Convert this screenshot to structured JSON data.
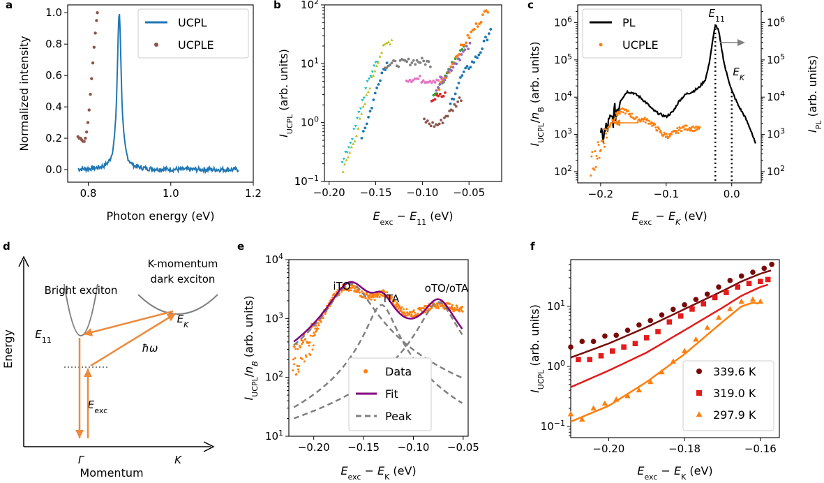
{
  "colors": {
    "ucpl_blue": "#1f77b4",
    "ucple_brown": "#8c564b",
    "orange": "#ff7f0e",
    "purple": "#800080",
    "gray": "#808080",
    "dark_red": "#7a0a0a",
    "red": "#e41a1c"
  },
  "panels": {
    "a": {
      "label": "a",
      "xlabel": "Photon energy (eV)",
      "ylabel": "Normalized intensity",
      "legend": [
        "UCPL",
        "UCPLE"
      ],
      "xticks": [
        "0.8",
        "1.0",
        "1.2"
      ],
      "yticks": [
        "0.0",
        "0.2",
        "0.4",
        "0.6",
        "0.8",
        "1.0"
      ]
    },
    "b": {
      "label": "b",
      "xlabel": "E_exc − E_11 (eV)",
      "ylabel": "I_UCPL (arb. units)",
      "xticks": [
        "−0.20",
        "−0.15",
        "−0.10",
        "−0.05"
      ],
      "yticks": [
        "10^−1",
        "10^0",
        "10^1",
        "10^2"
      ]
    },
    "c": {
      "label": "c",
      "xlabel": "E_exc − E_K (eV)",
      "ylabel": "I_UCPL/n_B (arb. units)",
      "ylabel2": "I_PL (arb. units)",
      "legend": [
        "PL",
        "UCPLE"
      ],
      "ann_e11": "E_11",
      "ann_ek": "E_K",
      "xticks": [
        "−0.2",
        "−0.1",
        "0.0"
      ],
      "yticks": [
        "10^2",
        "10^3",
        "10^4",
        "10^5",
        "10^6"
      ]
    },
    "d": {
      "label": "d",
      "xlabel": "Momentum",
      "ylabel": "Energy",
      "bright": "Bright exciton",
      "dark1": "K-momentum",
      "dark2": "dark exciton",
      "e11": "E_11",
      "ek": "E_K",
      "hw": "ħω",
      "eexc": "E_exc",
      "gamma": "Γ",
      "k": "K"
    },
    "e": {
      "label": "e",
      "xlabel": "E_exc − E_K (eV)",
      "ylabel": "I_UCPL/n_B (arb. units)",
      "legend": [
        "Data",
        "Fit",
        "Peak"
      ],
      "peaks": [
        "iTO",
        "iTA",
        "oTO/oTA"
      ],
      "xticks": [
        "−0.20",
        "−0.15",
        "−0.10",
        "−0.05"
      ],
      "yticks": [
        "10^1",
        "10^2",
        "10^3",
        "10^4"
      ]
    },
    "f": {
      "label": "f",
      "xlabel": "E_exc − E_K (eV)",
      "ylabel": "I_UCPL (arb. units)",
      "legend": [
        "339.6 K",
        "319.0 K",
        "297.9 K"
      ],
      "xticks": [
        "−0.20",
        "−0.18",
        "−0.16"
      ],
      "yticks": [
        "10^−1",
        "10^0",
        "10^1"
      ]
    }
  },
  "chart_data": [
    {
      "panel": "a",
      "type": "line",
      "xlabel": "Photon energy (eV)",
      "ylabel": "Normalized intensity",
      "xlim": [
        0.75,
        1.2
      ],
      "ylim": [
        -0.08,
        1.05
      ],
      "series": [
        {
          "name": "UCPL",
          "kind": "line",
          "center": 0.875,
          "width": 0.006,
          "noise": 0.015,
          "x_range": [
            0.775,
            1.165
          ]
        },
        {
          "name": "UCPLE",
          "kind": "scatter",
          "x": [
            0.775,
            0.778,
            0.781,
            0.784,
            0.787,
            0.79,
            0.793,
            0.796,
            0.799,
            0.802,
            0.805,
            0.808,
            0.811,
            0.814,
            0.817,
            0.82,
            0.822
          ],
          "y": [
            0.21,
            0.2,
            0.2,
            0.19,
            0.18,
            0.18,
            0.2,
            0.24,
            0.3,
            0.38,
            0.48,
            0.58,
            0.68,
            0.78,
            0.87,
            0.95,
            1.0
          ]
        }
      ]
    },
    {
      "panel": "b",
      "type": "scatter",
      "log_y": true,
      "xlabel": "E_exc − E_11 (eV)",
      "ylabel": "I_UCPL (arb. units)",
      "xlim": [
        -0.205,
        -0.015
      ],
      "ylim": [
        0.1,
        100
      ],
      "series": [
        {
          "color": "#17becf",
          "x": [
            -0.186,
            -0.18,
            -0.172,
            -0.165,
            -0.158,
            -0.152,
            -0.147
          ],
          "y": [
            0.2,
            0.35,
            0.8,
            2.2,
            5,
            9,
            13
          ]
        },
        {
          "color": "#bcbd22",
          "x": [
            -0.185,
            -0.178,
            -0.17,
            -0.162,
            -0.155,
            -0.148,
            -0.143,
            -0.138,
            -0.132
          ],
          "y": [
            0.15,
            0.3,
            0.7,
            2,
            5,
            11,
            17,
            22,
            26
          ]
        },
        {
          "color": "#1f77b4",
          "x": [
            -0.165,
            -0.158,
            -0.152,
            -0.147,
            -0.142,
            -0.138
          ],
          "y": [
            0.6,
            1.2,
            2.5,
            5,
            8,
            10
          ]
        },
        {
          "color": "#7f7f7f",
          "x": [
            -0.14,
            -0.13,
            -0.12,
            -0.11,
            -0.1,
            -0.095,
            -0.09
          ],
          "y": [
            9.5,
            10,
            10.5,
            11,
            11,
            10.5,
            10
          ]
        },
        {
          "color": "#e377c2",
          "x": [
            -0.117,
            -0.11,
            -0.1,
            -0.09,
            -0.082,
            -0.075
          ],
          "y": [
            5.5,
            5.6,
            5.4,
            5.3,
            5.5,
            5.5
          ]
        },
        {
          "color": "#8c564b",
          "x": [
            -0.098,
            -0.092,
            -0.085,
            -0.08,
            -0.075,
            -0.07,
            -0.063,
            -0.058
          ],
          "y": [
            1.1,
            0.95,
            0.9,
            1.0,
            1.3,
            1.5,
            2.2,
            2.7
          ]
        },
        {
          "color": "#2ca02c",
          "x": [
            -0.088,
            -0.082,
            -0.076,
            -0.07,
            -0.062,
            -0.055
          ],
          "y": [
            3,
            4,
            6,
            9,
            13,
            18
          ]
        },
        {
          "color": "#d62728",
          "x": [
            -0.09,
            -0.085,
            -0.08,
            -0.075
          ],
          "y": [
            2.5,
            2.6,
            2.8,
            3
          ]
        },
        {
          "color": "#ff7f0e",
          "x": [
            -0.082,
            -0.075,
            -0.068,
            -0.06,
            -0.052,
            -0.045,
            -0.038,
            -0.032,
            -0.028
          ],
          "y": [
            4,
            6,
            10,
            17,
            26,
            38,
            55,
            75,
            95
          ]
        },
        {
          "color": "#9467bd",
          "x": [
            -0.085,
            -0.078,
            -0.07,
            -0.062,
            -0.055,
            -0.048
          ],
          "y": [
            4,
            5.5,
            8,
            12,
            16,
            21
          ]
        },
        {
          "color": "#1f77b4",
          "x": [
            -0.07,
            -0.063,
            -0.058,
            -0.05,
            -0.045,
            -0.04,
            -0.035,
            -0.03,
            -0.025
          ],
          "y": [
            2,
            4,
            6,
            9,
            11,
            14,
            20,
            30,
            48
          ]
        }
      ]
    },
    {
      "panel": "c",
      "type": "line",
      "log_y": true,
      "xlabel": "E_exc − E_K (eV)",
      "ylabel": "I_UCPL/n_B (arb. units)",
      "xlim": [
        -0.235,
        0.045
      ],
      "ylim": [
        50,
        3000000
      ],
      "series": [
        {
          "name": "PL",
          "x": [
            -0.2,
            -0.19,
            -0.18,
            -0.17,
            -0.16,
            -0.15,
            -0.14,
            -0.13,
            -0.12,
            -0.11,
            -0.1,
            -0.09,
            -0.08,
            -0.07,
            -0.06,
            -0.05,
            -0.04,
            -0.035,
            -0.03,
            -0.025,
            -0.02,
            -0.015,
            -0.01,
            -0.005,
            0.0,
            0.01,
            0.02,
            0.03,
            0.037
          ],
          "y": [
            700,
            1500,
            3000,
            8000,
            14000,
            13000,
            10000,
            7000,
            4500,
            3500,
            3000,
            4000,
            8000,
            12000,
            14000,
            18000,
            30000,
            70000,
            250000,
            900000,
            600000,
            180000,
            60000,
            30000,
            15000,
            6000,
            3000,
            1200,
            500
          ]
        },
        {
          "name": "UCPLE",
          "x": [
            -0.215,
            -0.205,
            -0.195,
            -0.185,
            -0.175,
            -0.165,
            -0.155,
            -0.145,
            -0.135,
            -0.125,
            -0.115,
            -0.105,
            -0.095,
            -0.085,
            -0.075,
            -0.065,
            -0.055,
            -0.048
          ],
          "y": [
            150,
            300,
            800,
            2000,
            3500,
            4500,
            3500,
            2500,
            2500,
            2200,
            1500,
            1000,
            900,
            1200,
            1500,
            1500,
            1400,
            1400
          ]
        }
      ],
      "markers": {
        "E_11": -0.025,
        "E_K": 0.0
      }
    },
    {
      "panel": "e",
      "type": "line",
      "log_y": true,
      "xlabel": "E_exc − E_K (eV)",
      "ylabel": "I_UCPL/n_B (arb. units)",
      "xlim": [
        -0.225,
        -0.045
      ],
      "ylim": [
        10,
        10000
      ],
      "peaks": [
        {
          "name": "iTO",
          "center": -0.163,
          "amp": 3900,
          "gamma": 0.018
        },
        {
          "name": "iTA",
          "center": -0.132,
          "amp": 1700,
          "gamma": 0.012
        },
        {
          "name": "oTO/oTA",
          "center": -0.075,
          "amp": 1900,
          "gamma": 0.015
        }
      ],
      "data_trend": {
        "x": [
          -0.22,
          -0.21,
          -0.2,
          -0.19,
          -0.18,
          -0.17,
          -0.16,
          -0.15,
          -0.14,
          -0.13,
          -0.12,
          -0.11,
          -0.1,
          -0.09,
          -0.08,
          -0.07,
          -0.06,
          -0.05
        ],
        "y": [
          180,
          300,
          550,
          1200,
          2300,
          3500,
          3200,
          2500,
          2300,
          2800,
          1900,
          1300,
          1200,
          1400,
          1700,
          1700,
          1500,
          1450
        ]
      }
    },
    {
      "panel": "f",
      "type": "scatter",
      "log_y": true,
      "xlabel": "E_exc − E_K (eV)",
      "ylabel": "I_UCPL (arb. units)",
      "xlim": [
        -0.21,
        -0.155
      ],
      "ylim": [
        0.065,
        60
      ],
      "series": [
        {
          "name": "339.6 K",
          "marker": "circle",
          "color": "#7a0a0a",
          "x": [
            -0.21,
            -0.207,
            -0.204,
            -0.201,
            -0.198,
            -0.195,
            -0.192,
            -0.189,
            -0.186,
            -0.183,
            -0.18,
            -0.177,
            -0.174,
            -0.171,
            -0.168,
            -0.165,
            -0.162,
            -0.159,
            -0.157
          ],
          "y": [
            2.1,
            2.6,
            2.6,
            3.2,
            3.3,
            4,
            4.9,
            5.8,
            7.2,
            8.9,
            10.6,
            13,
            16,
            21,
            27,
            32,
            37,
            43,
            50
          ],
          "fit": {
            "x": [
              -0.21,
              -0.2,
              -0.19,
              -0.18,
              -0.17,
              -0.165,
              -0.16,
              -0.157
            ],
            "y": [
              1.4,
              2.4,
              4.5,
              9,
              18,
              26,
              35,
              40
            ]
          }
        },
        {
          "name": "319.0 K",
          "marker": "square",
          "color": "#e41a1c",
          "x": [
            -0.208,
            -0.205,
            -0.202,
            -0.199,
            -0.196,
            -0.193,
            -0.19,
            -0.187,
            -0.184,
            -0.181,
            -0.178,
            -0.175,
            -0.172,
            -0.169,
            -0.166,
            -0.163,
            -0.16,
            -0.158
          ],
          "y": [
            1.3,
            1.3,
            1.5,
            1.8,
            2.1,
            2.4,
            3,
            3.8,
            5.5,
            6.9,
            9,
            11,
            14,
            17,
            21,
            24,
            26,
            28
          ],
          "fit": {
            "x": [
              -0.21,
              -0.2,
              -0.19,
              -0.18,
              -0.17,
              -0.165,
              -0.16,
              -0.158
            ],
            "y": [
              0.45,
              0.85,
              1.7,
              4,
              9.5,
              15,
              21,
              23
            ]
          }
        },
        {
          "name": "297.9 K",
          "marker": "triangle",
          "color": "#ff7f0e",
          "x": [
            -0.21,
            -0.207,
            -0.204,
            -0.201,
            -0.198,
            -0.195,
            -0.192,
            -0.189,
            -0.186,
            -0.183,
            -0.18,
            -0.177,
            -0.174,
            -0.171,
            -0.168,
            -0.165,
            -0.162,
            -0.16
          ],
          "y": [
            0.16,
            0.13,
            0.2,
            0.24,
            0.28,
            0.32,
            0.4,
            0.55,
            0.8,
            1.2,
            1.8,
            2.8,
            4.4,
            6.5,
            9,
            12,
            13,
            12
          ],
          "fit": {
            "x": [
              -0.21,
              -0.2,
              -0.19,
              -0.18,
              -0.17,
              -0.165,
              -0.162,
              -0.16
            ],
            "y": [
              0.12,
              0.22,
              0.55,
              1.6,
              5.5,
              10,
              11.5,
              11
            ]
          }
        }
      ]
    }
  ]
}
